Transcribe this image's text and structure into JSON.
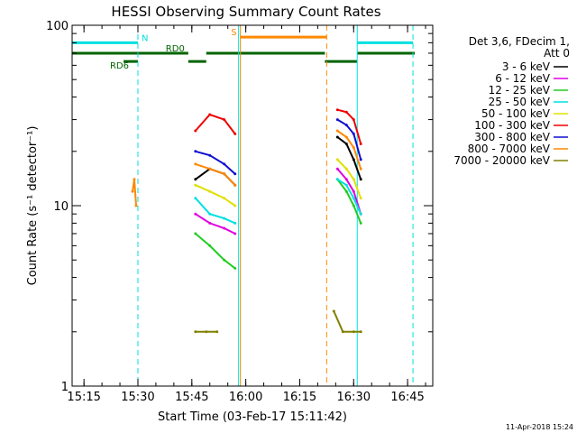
{
  "chart_data": {
    "type": "line",
    "title": "HESSI Observing Summary Count Rates",
    "xlabel": "Start Time (03-Feb-17 15:11:42)",
    "ylabel": "Count Rate (s⁻¹ detector⁻¹)",
    "y_scale": "log",
    "xlim": [
      "15:11:42",
      "16:52:00"
    ],
    "ylim": [
      1,
      100
    ],
    "x_ticks": [
      "15:15",
      "15:30",
      "15:45",
      "16:00",
      "16:15",
      "16:30",
      "16:45"
    ],
    "y_ticks": [
      "1",
      "10",
      "100"
    ],
    "legend_title": "Det 3,6, FDecim 1,",
    "legend_title2": "Att 0",
    "legend_position": "right",
    "series": [
      {
        "name": "3 - 6 keV",
        "color": "#000000",
        "segments": [
          {
            "x": [
              "15:46:00",
              "15:50:00",
              "15:54:00",
              "15:57:00"
            ],
            "y": [
              14,
              16,
              15,
              13
            ]
          },
          {
            "x": [
              "16:25:30",
              "16:28:00",
              "16:30:00",
              "16:32:00"
            ],
            "y": [
              24,
              22,
              18,
              14
            ]
          }
        ]
      },
      {
        "name": "6 - 12 keV",
        "color": "#e000e0",
        "segments": [
          {
            "x": [
              "15:46:00",
              "15:50:00",
              "15:54:00",
              "15:57:00"
            ],
            "y": [
              9,
              8,
              7.5,
              7
            ]
          },
          {
            "x": [
              "16:25:30",
              "16:28:00",
              "16:30:00",
              "16:32:00"
            ],
            "y": [
              16,
              14,
              12,
              9
            ]
          }
        ]
      },
      {
        "name": "12 - 25 keV",
        "color": "#22cc22",
        "segments": [
          {
            "x": [
              "15:46:00",
              "15:50:00",
              "15:54:00",
              "15:57:00"
            ],
            "y": [
              7,
              6,
              5,
              4.5
            ]
          },
          {
            "x": [
              "16:25:30",
              "16:28:00",
              "16:30:00",
              "16:32:00"
            ],
            "y": [
              14,
              12,
              10,
              8
            ]
          }
        ]
      },
      {
        "name": "25 - 50 keV",
        "color": "#00e0e0",
        "segments": [
          {
            "x": [
              "15:46:00",
              "15:50:00",
              "15:54:00",
              "15:57:00"
            ],
            "y": [
              11,
              9,
              8.5,
              8
            ]
          },
          {
            "x": [
              "16:25:30",
              "16:28:00",
              "16:30:00",
              "16:32:00"
            ],
            "y": [
              14,
              13,
              11,
              9
            ]
          }
        ]
      },
      {
        "name": "50 - 100 keV",
        "color": "#e0e000",
        "segments": [
          {
            "x": [
              "15:46:00",
              "15:50:00",
              "15:54:00",
              "15:57:00"
            ],
            "y": [
              13,
              12,
              11,
              10
            ]
          },
          {
            "x": [
              "16:25:30",
              "16:28:00",
              "16:30:00",
              "16:32:00"
            ],
            "y": [
              18,
              16,
              14,
              11
            ]
          }
        ]
      },
      {
        "name": "100 - 300 keV",
        "color": "#ee0000",
        "segments": [
          {
            "x": [
              "15:46:00",
              "15:50:00",
              "15:54:00",
              "15:57:00"
            ],
            "y": [
              26,
              32,
              30,
              25
            ]
          },
          {
            "x": [
              "16:25:30",
              "16:28:00",
              "16:30:00",
              "16:32:00"
            ],
            "y": [
              34,
              33,
              30,
              22
            ]
          }
        ]
      },
      {
        "name": "300 - 800 keV",
        "color": "#1010d0",
        "segments": [
          {
            "x": [
              "15:46:00",
              "15:50:00",
              "15:54:00",
              "15:57:00"
            ],
            "y": [
              20,
              19,
              17,
              15
            ]
          },
          {
            "x": [
              "16:25:30",
              "16:28:00",
              "16:30:00",
              "16:32:00"
            ],
            "y": [
              30,
              28,
              25,
              18
            ]
          }
        ]
      },
      {
        "name": "800 - 7000 keV",
        "color": "#ff8800",
        "segments": [
          {
            "x": [
              "15:28:30",
              "15:29:00",
              "15:29:30"
            ],
            "y": [
              12,
              14,
              10
            ]
          },
          {
            "x": [
              "15:46:00",
              "15:50:00",
              "15:54:00",
              "15:57:00"
            ],
            "y": [
              17,
              16,
              15,
              13
            ]
          },
          {
            "x": [
              "16:25:30",
              "16:28:00",
              "16:30:00",
              "16:32:00"
            ],
            "y": [
              26,
              24,
              21,
              16
            ]
          }
        ]
      },
      {
        "name": "7000 - 20000 keV",
        "color": "#808000",
        "segments": [
          {
            "x": [
              "15:46:00",
              "15:49:00",
              "15:52:00"
            ],
            "y": [
              2,
              2,
              2
            ]
          },
          {
            "x": [
              "16:24:30",
              "16:27:00",
              "16:30:00",
              "16:32:00"
            ],
            "y": [
              2.6,
              2,
              2,
              2
            ]
          }
        ]
      }
    ],
    "flags": [
      {
        "label": "N",
        "color": "#00e0e0",
        "y": 80,
        "spans": [
          [
            "15:11:42",
            "15:30:00"
          ],
          [
            "16:31:00",
            "16:46:30"
          ]
        ]
      },
      {
        "label": "S",
        "color": "#ff8800",
        "y": 86,
        "spans": [
          [
            "15:58:30",
            "16:22:30"
          ]
        ]
      },
      {
        "label": "RD0",
        "color": "#006400",
        "y": 70,
        "spans": [
          [
            "15:11:42",
            "15:44:00"
          ],
          [
            "15:49:00",
            "16:22:00"
          ],
          [
            "16:31:00",
            "16:47:00"
          ]
        ]
      },
      {
        "label": "RD6",
        "color": "#006400",
        "y": 63,
        "spans": [
          [
            "15:26:00",
            "15:30:00"
          ],
          [
            "15:44:00",
            "15:49:00"
          ],
          [
            "16:22:00",
            "16:31:00"
          ]
        ]
      }
    ],
    "vlines": [
      {
        "x": "15:11:42",
        "color": "#00e0e0",
        "style": "solid"
      },
      {
        "x": "15:30:00",
        "color": "#00e0e0",
        "style": "dashed"
      },
      {
        "x": "15:58:00",
        "color": "#00e0e0",
        "style": "solid"
      },
      {
        "x": "15:58:30",
        "color": "#ff8800",
        "style": "solid"
      },
      {
        "x": "16:22:30",
        "color": "#ff8800",
        "style": "dashed"
      },
      {
        "x": "16:31:00",
        "color": "#00e0e0",
        "style": "solid"
      },
      {
        "x": "16:46:30",
        "color": "#00e0e0",
        "style": "dashed"
      }
    ],
    "timestamp": "11-Apr-2018 15:24"
  }
}
